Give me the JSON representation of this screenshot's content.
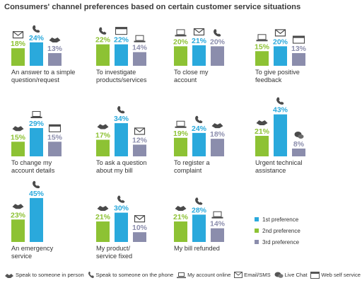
{
  "title": "Consumers' channel preferences based on certain customer service situations",
  "colors": {
    "first": "#2aa9dc",
    "second": "#8dc234",
    "third": "#8b8dac"
  },
  "legend": [
    {
      "label": "1st preference",
      "color": "#2aa9dc"
    },
    {
      "label": "2nd preference",
      "color": "#8dc234"
    },
    {
      "label": "3rd preference",
      "color": "#8b8dac"
    }
  ],
  "channels": [
    {
      "key": "person",
      "label": "Speak to someone in person",
      "icon": "handshake-icon"
    },
    {
      "key": "phone",
      "label": "Speak to someone on the phone",
      "icon": "phone-icon"
    },
    {
      "key": "online",
      "label": "My account online",
      "icon": "laptop-icon"
    },
    {
      "key": "email",
      "label": "Email/SMS",
      "icon": "envelope-icon"
    },
    {
      "key": "chat",
      "label": "Live Chat",
      "icon": "chat-bubbles-icon"
    },
    {
      "key": "web",
      "label": "Web self service",
      "icon": "browser-window-icon"
    }
  ],
  "chart_data": {
    "type": "bar",
    "title": "Consumers' channel preferences based on certain customer service situations",
    "series": [
      {
        "name": "2nd preference",
        "color": "#8dc234"
      },
      {
        "name": "1st preference",
        "color": "#2aa9dc"
      },
      {
        "name": "3rd preference",
        "color": "#8b8dac"
      }
    ],
    "panels": [
      {
        "caption": [
          "An answer to a simple",
          "question/request"
        ],
        "values": [
          18,
          24,
          13
        ],
        "labels": [
          "18%",
          "24%",
          "13%"
        ],
        "channels": [
          "email",
          "phone",
          "person"
        ]
      },
      {
        "caption": [
          "To investigate",
          "products/services"
        ],
        "values": [
          22,
          22,
          14
        ],
        "labels": [
          "22%",
          "22%",
          "14%"
        ],
        "channels": [
          "phone",
          "web",
          "online"
        ]
      },
      {
        "caption": [
          "To close my",
          "account"
        ],
        "values": [
          20,
          21,
          20
        ],
        "labels": [
          "20%",
          "21%",
          "20%"
        ],
        "channels": [
          "online",
          "email",
          "phone"
        ]
      },
      {
        "caption": [
          "To give positive",
          "feedback"
        ],
        "values": [
          15,
          20,
          13
        ],
        "labels": [
          "15%",
          "20%",
          "13%"
        ],
        "channels": [
          "online",
          "email",
          "web"
        ]
      },
      {
        "caption": [
          "To change my",
          "account details"
        ],
        "values": [
          15,
          29,
          15
        ],
        "labels": [
          "15%",
          "29%",
          "15%"
        ],
        "channels": [
          "person",
          "online",
          "web"
        ]
      },
      {
        "caption": [
          "To ask a question",
          "about my bill"
        ],
        "values": [
          17,
          34,
          12
        ],
        "labels": [
          "17%",
          "34%",
          "12%"
        ],
        "channels": [
          "person",
          "phone",
          "email"
        ]
      },
      {
        "caption": [
          "To register a",
          "complaint"
        ],
        "values": [
          19,
          24,
          18
        ],
        "labels": [
          "19%",
          "24%",
          "18%"
        ],
        "channels": [
          "online",
          "phone",
          "person"
        ]
      },
      {
        "caption": [
          "Urgent technical",
          "assistance"
        ],
        "values": [
          21,
          43,
          8
        ],
        "labels": [
          "21%",
          "43%",
          "8%"
        ],
        "channels": [
          "person",
          "phone",
          "chat"
        ]
      },
      {
        "caption": [
          "An emergency",
          "service"
        ],
        "values": [
          23,
          45,
          null
        ],
        "labels": [
          "23%",
          "45%",
          ""
        ],
        "channels": [
          "person",
          "phone",
          ""
        ]
      },
      {
        "caption": [
          "My product/",
          "service fixed"
        ],
        "values": [
          21,
          30,
          10
        ],
        "labels": [
          "21%",
          "30%",
          "10%"
        ],
        "channels": [
          "person",
          "phone",
          "email"
        ]
      },
      {
        "caption": [
          "My bill refunded",
          ""
        ],
        "values": [
          21,
          28,
          14
        ],
        "labels": [
          "21%",
          "28%",
          "14%"
        ],
        "channels": [
          "person",
          "phone",
          "online"
        ]
      }
    ],
    "ylim": [
      0,
      45
    ]
  }
}
